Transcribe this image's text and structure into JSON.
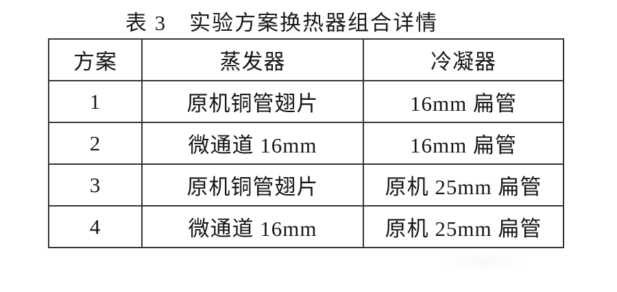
{
  "title": "表 3　实验方案换热器组合详情",
  "table": {
    "columns": [
      "方案",
      "蒸发器",
      "冷凝器"
    ],
    "rows": [
      [
        "1",
        "原机铜管翅片",
        "16mm 扁管"
      ],
      [
        "2",
        "微通道 16mm",
        "16mm 扁管"
      ],
      [
        "3",
        "原机铜管翅片",
        "原机 25mm 扁管"
      ],
      [
        "4",
        "微通道 16mm",
        "原机 25mm 扁管"
      ]
    ]
  }
}
